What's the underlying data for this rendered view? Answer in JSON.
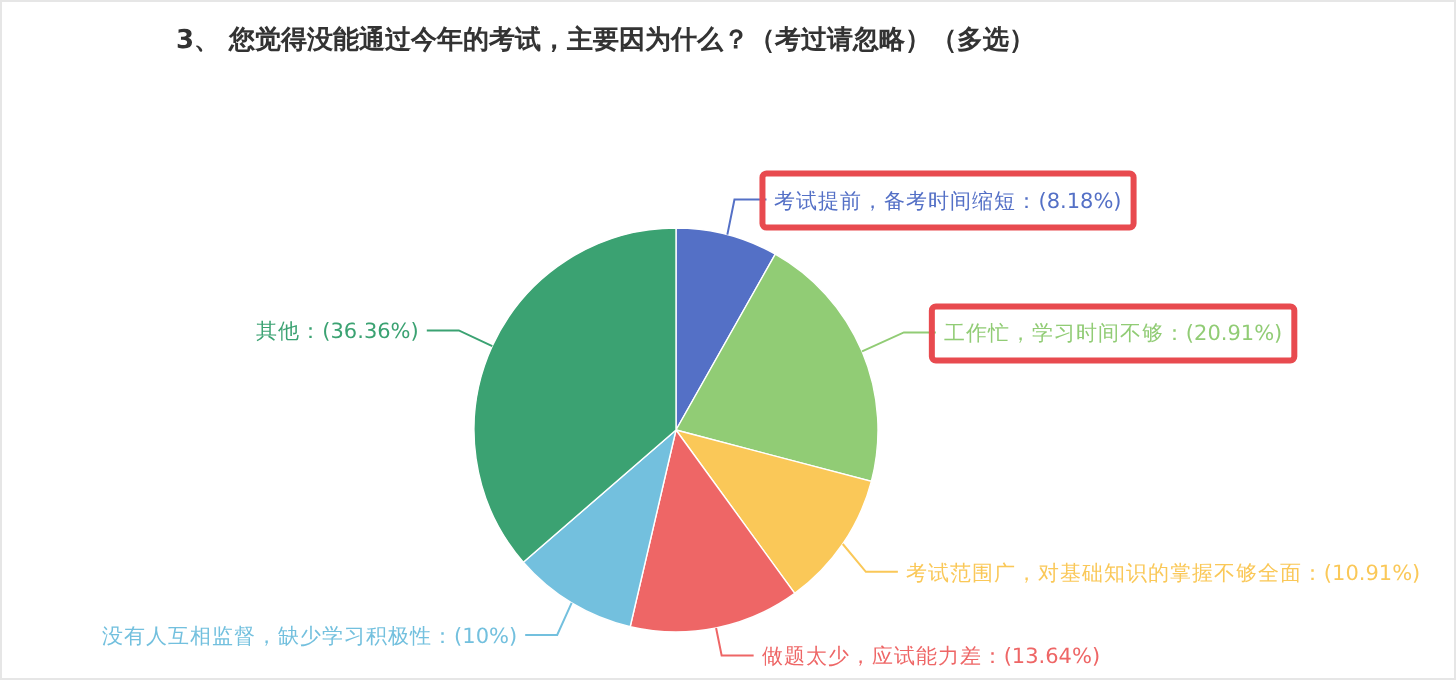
{
  "chart_data": {
    "type": "pie",
    "title": "3、 您觉得没能通过今年的考试，主要因为什么？（考过请忽略）（多选）",
    "categories": [
      "考试提前，备考时间缩短",
      "工作忙，学习时间不够",
      "考试范围广，对基础知识的掌握不够全面",
      "做题太少，应试能力差",
      "没有人互相监督，缺少学习积极性",
      "其他"
    ],
    "values": [
      8.18,
      20.91,
      10.91,
      13.64,
      10,
      36.36
    ],
    "value_labels": [
      "(8.18%)",
      "(20.91%)",
      "(10.91%)",
      "(13.64%)",
      "(10%)",
      "(36.36%)"
    ],
    "colors": [
      "#5470c6",
      "#91cc75",
      "#fac858",
      "#ee6666",
      "#73c0de",
      "#3ba272"
    ]
  }
}
